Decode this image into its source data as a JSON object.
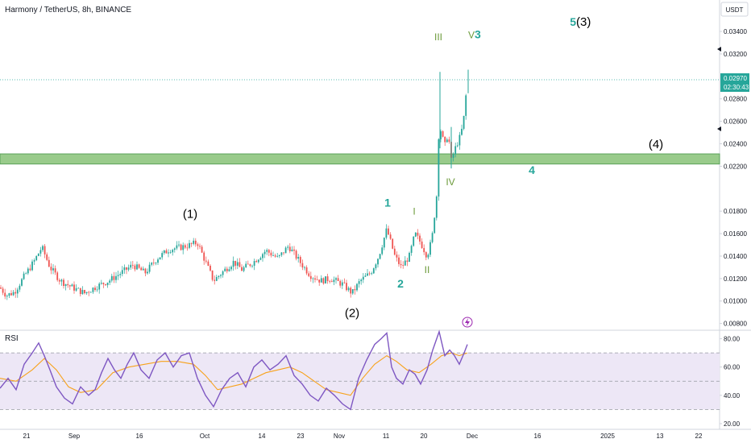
{
  "chart_data": {
    "type": "candlestick",
    "title": "Harmony / TetherUS, 8h, BINANCE",
    "currency": "USDT",
    "price_axis": {
      "ticks": [
        "0.03400",
        "0.03200",
        "0.02800",
        "0.02600",
        "0.02400",
        "0.02200",
        "0.01800",
        "0.01600",
        "0.01400",
        "0.01200",
        "0.01000",
        "0.00800"
      ],
      "ylim": [
        0.0074,
        0.0368
      ]
    },
    "last_price": "0.02970",
    "countdown": "02:30:43",
    "time_axis": {
      "labels": [
        "21",
        "Sep",
        "16",
        "Oct",
        "14",
        "23",
        "Nov",
        "11",
        "20",
        "Dec",
        "16",
        "2025",
        "13",
        "22"
      ]
    },
    "support_zone": [
      0.0222,
      0.0231
    ],
    "price_path": [
      [
        0,
        0.0112
      ],
      [
        8,
        0.0105
      ],
      [
        18,
        0.0108
      ],
      [
        30,
        0.0122
      ],
      [
        42,
        0.0135
      ],
      [
        52,
        0.0148
      ],
      [
        62,
        0.013
      ],
      [
        75,
        0.0118
      ],
      [
        90,
        0.0112
      ],
      [
        105,
        0.0107
      ],
      [
        120,
        0.0113
      ],
      [
        135,
        0.0118
      ],
      [
        150,
        0.0125
      ],
      [
        165,
        0.0132
      ],
      [
        180,
        0.0125
      ],
      [
        195,
        0.0138
      ],
      [
        210,
        0.0146
      ],
      [
        225,
        0.0148
      ],
      [
        236,
        0.015
      ],
      [
        245,
        0.0152
      ],
      [
        255,
        0.0135
      ],
      [
        265,
        0.0118
      ],
      [
        275,
        0.0125
      ],
      [
        290,
        0.0135
      ],
      [
        300,
        0.0128
      ],
      [
        315,
        0.0135
      ],
      [
        330,
        0.0145
      ],
      [
        345,
        0.0138
      ],
      [
        358,
        0.0149
      ],
      [
        372,
        0.0135
      ],
      [
        385,
        0.0123
      ],
      [
        398,
        0.0118
      ],
      [
        410,
        0.012
      ],
      [
        425,
        0.0115
      ],
      [
        437,
        0.0107
      ],
      [
        447,
        0.0118
      ],
      [
        460,
        0.0125
      ],
      [
        470,
        0.014
      ],
      [
        480,
        0.0164
      ],
      [
        490,
        0.014
      ],
      [
        498,
        0.013
      ],
      [
        508,
        0.014
      ],
      [
        515,
        0.016
      ],
      [
        522,
        0.0152
      ],
      [
        530,
        0.014
      ],
      [
        536,
        0.0155
      ],
      [
        542,
        0.0195
      ],
      [
        545,
        0.026
      ],
      [
        548,
        0.0248
      ],
      [
        552,
        0.0238
      ],
      [
        556,
        0.025
      ],
      [
        560,
        0.0225
      ],
      [
        566,
        0.0238
      ],
      [
        572,
        0.0248
      ],
      [
        576,
        0.0265
      ],
      [
        580,
        0.0297
      ]
    ],
    "spikes": [
      {
        "x": 546,
        "high": 0.0304,
        "low": 0.0236
      },
      {
        "x": 560,
        "high": 0.0255,
        "low": 0.0218
      },
      {
        "x": 581,
        "high": 0.0306,
        "low": 0.0285
      }
    ],
    "wave_labels": {
      "big": [
        {
          "text": "(1)",
          "x": 236,
          "price": 0.0174
        },
        {
          "text": "(2)",
          "x": 437,
          "price": 0.0086
        },
        {
          "text": "(4)",
          "x": 814,
          "price": 0.0236
        }
      ],
      "teal": [
        {
          "text": "1",
          "x": 481,
          "price": 0.0184
        },
        {
          "text": "2",
          "x": 497,
          "price": 0.0112
        },
        {
          "text": "4",
          "x": 660,
          "price": 0.0213
        }
      ],
      "green": [
        {
          "text": "III",
          "x": 544,
          "price": 0.0332
        },
        {
          "text": "I",
          "x": 514,
          "price": 0.0177
        },
        {
          "text": "IV",
          "x": 559,
          "price": 0.0203
        },
        {
          "text": "II",
          "x": 530,
          "price": 0.0125
        }
      ],
      "v3": {
        "roman": "V",
        "digit": "3",
        "x": 591,
        "price": 0.0334
      },
      "five_three": {
        "five": "5",
        "three": "(3)",
        "x": 717,
        "price": 0.0345
      }
    },
    "rsi": {
      "label": "RSI",
      "ticks": [
        "80.00",
        "60.00",
        "40.00",
        "20.00"
      ],
      "ylim": [
        16,
        86
      ],
      "upper": 70,
      "middle": 50,
      "lower": 30,
      "path": [
        [
          0,
          45
        ],
        [
          10,
          52
        ],
        [
          20,
          44
        ],
        [
          30,
          62
        ],
        [
          40,
          70
        ],
        [
          48,
          77
        ],
        [
          55,
          68
        ],
        [
          62,
          58
        ],
        [
          70,
          46
        ],
        [
          80,
          38
        ],
        [
          90,
          34
        ],
        [
          100,
          46
        ],
        [
          110,
          40
        ],
        [
          118,
          44
        ],
        [
          126,
          56
        ],
        [
          134,
          66
        ],
        [
          142,
          58
        ],
        [
          150,
          52
        ],
        [
          158,
          62
        ],
        [
          166,
          70
        ],
        [
          175,
          58
        ],
        [
          185,
          52
        ],
        [
          195,
          65
        ],
        [
          205,
          70
        ],
        [
          215,
          60
        ],
        [
          225,
          68
        ],
        [
          235,
          70
        ],
        [
          245,
          52
        ],
        [
          255,
          40
        ],
        [
          265,
          32
        ],
        [
          275,
          44
        ],
        [
          285,
          52
        ],
        [
          295,
          56
        ],
        [
          305,
          46
        ],
        [
          315,
          60
        ],
        [
          325,
          65
        ],
        [
          335,
          58
        ],
        [
          345,
          62
        ],
        [
          355,
          68
        ],
        [
          365,
          54
        ],
        [
          375,
          48
        ],
        [
          385,
          40
        ],
        [
          395,
          36
        ],
        [
          405,
          45
        ],
        [
          415,
          40
        ],
        [
          425,
          34
        ],
        [
          435,
          30
        ],
        [
          445,
          52
        ],
        [
          455,
          65
        ],
        [
          465,
          76
        ],
        [
          473,
          80
        ],
        [
          480,
          84
        ],
        [
          486,
          60
        ],
        [
          492,
          52
        ],
        [
          500,
          48
        ],
        [
          508,
          58
        ],
        [
          515,
          55
        ],
        [
          522,
          48
        ],
        [
          530,
          58
        ],
        [
          537,
          72
        ],
        [
          545,
          85
        ],
        [
          552,
          68
        ],
        [
          558,
          72
        ],
        [
          564,
          68
        ],
        [
          570,
          62
        ],
        [
          576,
          70
        ],
        [
          580,
          76
        ]
      ],
      "ma_path": [
        [
          0,
          52
        ],
        [
          20,
          50
        ],
        [
          40,
          58
        ],
        [
          55,
          66
        ],
        [
          70,
          58
        ],
        [
          85,
          46
        ],
        [
          100,
          42
        ],
        [
          120,
          44
        ],
        [
          140,
          56
        ],
        [
          160,
          60
        ],
        [
          180,
          62
        ],
        [
          200,
          64
        ],
        [
          220,
          64
        ],
        [
          240,
          62
        ],
        [
          255,
          54
        ],
        [
          270,
          44
        ],
        [
          285,
          46
        ],
        [
          300,
          48
        ],
        [
          315,
          52
        ],
        [
          330,
          56
        ],
        [
          345,
          58
        ],
        [
          360,
          60
        ],
        [
          375,
          56
        ],
        [
          390,
          50
        ],
        [
          405,
          44
        ],
        [
          420,
          42
        ],
        [
          435,
          40
        ],
        [
          450,
          52
        ],
        [
          465,
          62
        ],
        [
          480,
          68
        ],
        [
          492,
          64
        ],
        [
          505,
          58
        ],
        [
          520,
          56
        ],
        [
          535,
          62
        ],
        [
          548,
          68
        ],
        [
          560,
          70
        ],
        [
          570,
          68
        ],
        [
          580,
          70
        ]
      ]
    }
  },
  "colors": {
    "up": "#26a69a",
    "down": "#ef5350",
    "zone_fill": "#8fc67f",
    "zone_stroke": "#4a9a4a",
    "rsi_line": "#7e57c2",
    "rsi_ma": "#f7a21b",
    "rsi_band": "#ede7f6",
    "price_label_bg": "#26a69a",
    "lightning": "#9c27b0"
  }
}
